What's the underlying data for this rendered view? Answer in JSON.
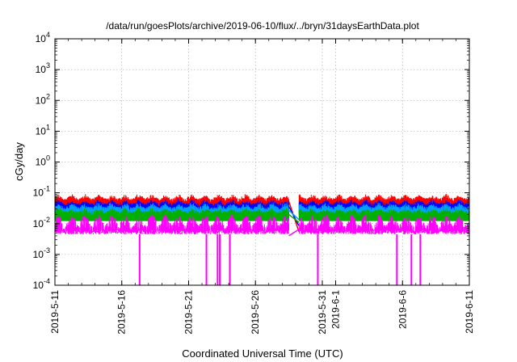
{
  "chart_data": {
    "type": "line",
    "title": "/data/run/goesPlots/archive/2019-06-10/flux/../bryn/31daysEarthData.plot",
    "xlabel": "Coordinated Universal Time (UTC)",
    "ylabel": "cGy/day",
    "y_scale": "log",
    "ylim": [
      0.0001,
      10000
    ],
    "xlim": [
      "2019-05-11",
      "2019-06-11"
    ],
    "grid": true,
    "y_ticks": [
      {
        "value": 0.0001,
        "base": "10",
        "exp": "-4"
      },
      {
        "value": 0.001,
        "base": "10",
        "exp": "-3"
      },
      {
        "value": 0.01,
        "base": "10",
        "exp": "-2"
      },
      {
        "value": 0.1,
        "base": "10",
        "exp": "-1"
      },
      {
        "value": 1,
        "base": "10",
        "exp": "0"
      },
      {
        "value": 10,
        "base": "10",
        "exp": "1"
      },
      {
        "value": 100,
        "base": "10",
        "exp": "2"
      },
      {
        "value": 1000,
        "base": "10",
        "exp": "3"
      },
      {
        "value": 10000,
        "base": "10",
        "exp": "4"
      }
    ],
    "x_ticks": [
      {
        "date": "2019-05-11",
        "label": "2019-5-11"
      },
      {
        "date": "2019-05-16",
        "label": "2019-5-16"
      },
      {
        "date": "2019-05-21",
        "label": "2019-5-21"
      },
      {
        "date": "2019-05-26",
        "label": "2019-5-26"
      },
      {
        "date": "2019-05-31",
        "label": "2019-5-31"
      },
      {
        "date": "2019-06-01",
        "label": "2019-6-1"
      },
      {
        "date": "2019-06-06",
        "label": "2019-6-6"
      },
      {
        "date": "2019-06-11",
        "label": "2019-6-11"
      }
    ],
    "data_gap": [
      "2019-05-28T12:00",
      "2019-05-29T06:00"
    ],
    "series": [
      {
        "color": "#ff0000",
        "base": 0.058,
        "peak": 0.085,
        "gap_value": 0.0055
      },
      {
        "color": "#0000ff",
        "base": 0.04,
        "peak": 0.058,
        "gap_value": 0.0085
      },
      {
        "color": "#00a0ff",
        "base": 0.03,
        "peak": 0.045,
        "gap_value": 0.0135
      },
      {
        "color": "#00b000",
        "base": 0.022,
        "peak": 0.03,
        "gap_value": 0.011
      },
      {
        "color": "#ff00ff",
        "base": 0.0045,
        "peak": 0.02,
        "gap_value": 0.0065
      }
    ],
    "dropouts": [
      "2019-05-17T08:00",
      "2019-05-22T08:00",
      "2019-05-23T04:00",
      "2019-05-23T08:00",
      "2019-05-24T02:00",
      "2019-05-30T16:00",
      "2019-06-05T14:00",
      "2019-06-06T16:00",
      "2019-06-07T08:00"
    ]
  }
}
